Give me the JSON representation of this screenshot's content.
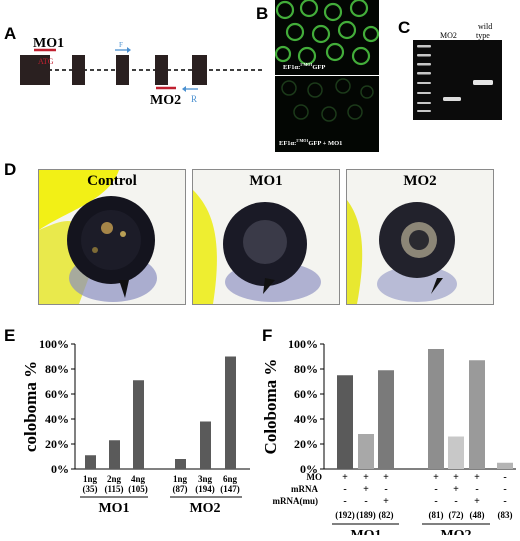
{
  "panels": {
    "a": {
      "letter": "A",
      "mo1_label": "MO1",
      "atg_label": "ATG",
      "mo2_label": "MO2",
      "forward_primer": "F",
      "reverse_primer": "R"
    },
    "b": {
      "letter": "B",
      "top_caption": "EF1α:",
      "top_sup": "5'MO1",
      "top_suffix": "GFP",
      "bottom_caption": "EF1α:",
      "bottom_sup": "5'MO1",
      "bottom_suffix": "GFP + MO1"
    },
    "c": {
      "letter": "C",
      "lane_mo2": "MO2",
      "lane_wt_1": "wild",
      "lane_wt_2": "type"
    },
    "d": {
      "letter": "D",
      "titles": [
        "Control",
        "MO1",
        "MO2"
      ]
    },
    "e": {
      "letter": "E"
    },
    "f": {
      "letter": "F",
      "row_labels": [
        "MO",
        "mRNA",
        "mRNA(mu)"
      ],
      "signs": [
        [
          "+",
          "-",
          "-"
        ],
        [
          "+",
          "+",
          "-"
        ],
        [
          "+",
          "-",
          "+"
        ],
        [
          "+",
          "-",
          "-"
        ],
        [
          "+",
          "+",
          "-"
        ],
        [
          "+",
          "-",
          "+"
        ],
        [
          "-",
          "-",
          "-"
        ]
      ]
    }
  },
  "chart_data": [
    {
      "type": "bar",
      "panel": "E",
      "ylabel": "coloboma %",
      "ylim": [
        0,
        100
      ],
      "yticks": [
        "0%",
        "20%",
        "40%",
        "60%",
        "80%",
        "100%"
      ],
      "categories": [
        "1ng (35)",
        "2ng (115)",
        "4ng (105)",
        "1ng (87)",
        "3ng (194)",
        "6ng (147)"
      ],
      "dose_labels": [
        "1ng",
        "2ng",
        "4ng",
        "1ng",
        "3ng",
        "6ng"
      ],
      "n_labels": [
        "(35)",
        "(115)",
        "(105)",
        "(87)",
        "(194)",
        "(147)"
      ],
      "values": [
        11,
        23,
        71,
        8,
        38,
        90
      ],
      "groups": [
        "MO1",
        "MO2"
      ],
      "color": "#5a5a5a"
    },
    {
      "type": "bar",
      "panel": "F",
      "ylabel": "Coloboma %",
      "ylim": [
        0,
        100
      ],
      "yticks": [
        "0%",
        "20%",
        "40%",
        "60%",
        "80%",
        "100%"
      ],
      "n_labels": [
        "(192)",
        "(189)",
        "(82)",
        "(81)",
        "(72)",
        "(48)",
        "(83)"
      ],
      "values": [
        75,
        28,
        79,
        96,
        26,
        87,
        5
      ],
      "colors": [
        "#5a5a5a",
        "#a8a8a8",
        "#7a7a7a",
        "#8e8e8e",
        "#c8c8c8",
        "#9a9a9a",
        "#b4b4b4"
      ],
      "groups": [
        "MO1",
        "MO2"
      ]
    }
  ]
}
